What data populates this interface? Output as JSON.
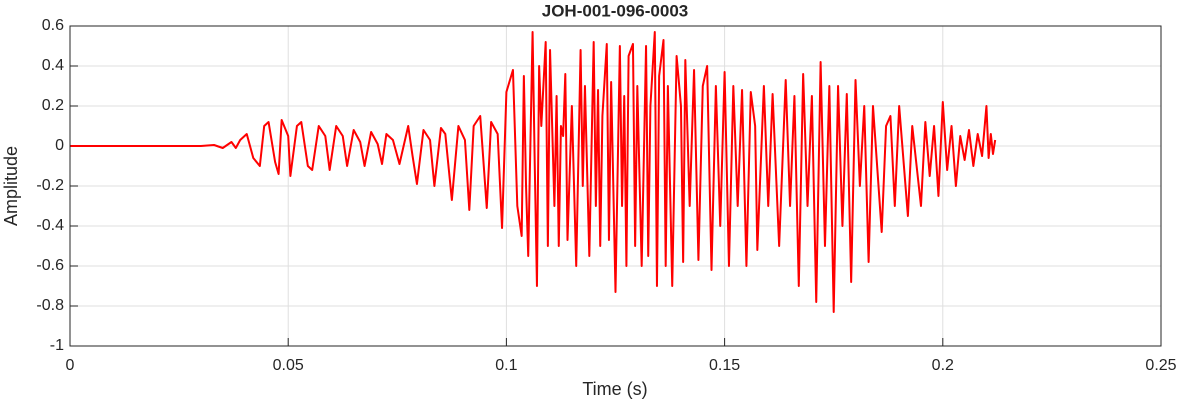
{
  "chart_data": {
    "type": "line",
    "title": "JOH-001-096-0003",
    "x_label": "Time (s)",
    "y_label": "Amplitude",
    "xlim": [
      0,
      0.25
    ],
    "xticks": [
      0,
      0.05,
      0.1,
      0.15,
      0.2,
      0.25
    ],
    "ylim": [
      -1,
      0.6
    ],
    "yticks": [
      -1,
      -0.8,
      -0.6,
      -0.4,
      -0.2,
      0,
      0.2,
      0.4,
      0.6
    ],
    "grid": true,
    "series": [
      {
        "color": "#ff0000",
        "x": [
          0,
          0.03,
          0.033,
          0.035,
          0.037,
          0.038,
          0.039,
          0.0405,
          0.042,
          0.0435,
          0.0445,
          0.0455,
          0.047,
          0.0478,
          0.0485,
          0.05,
          0.0505,
          0.052,
          0.053,
          0.0545,
          0.0555,
          0.057,
          0.0585,
          0.0595,
          0.061,
          0.0625,
          0.0635,
          0.065,
          0.0665,
          0.0675,
          0.069,
          0.0705,
          0.0715,
          0.0725,
          0.074,
          0.0755,
          0.0775,
          0.0785,
          0.0795,
          0.081,
          0.0825,
          0.0835,
          0.085,
          0.086,
          0.0875,
          0.089,
          0.0905,
          0.0915,
          0.0925,
          0.094,
          0.0955,
          0.0965,
          0.098,
          0.099,
          0.1,
          0.1015,
          0.1025,
          0.1035,
          0.104,
          0.1045,
          0.105,
          0.106,
          0.1065,
          0.107,
          0.1075,
          0.108,
          0.109,
          0.1095,
          0.11,
          0.111,
          0.1115,
          0.112,
          0.1125,
          0.113,
          0.1135,
          0.114,
          0.115,
          0.116,
          0.117,
          0.1175,
          0.118,
          0.119,
          0.12,
          0.1205,
          0.121,
          0.1215,
          0.122,
          0.123,
          0.1235,
          0.124,
          0.125,
          0.126,
          0.1265,
          0.127,
          0.1275,
          0.128,
          0.129,
          0.1295,
          0.13,
          0.131,
          0.132,
          0.1325,
          0.133,
          0.134,
          0.1345,
          0.135,
          0.136,
          0.1365,
          0.137,
          0.138,
          0.139,
          0.14,
          0.1405,
          0.141,
          0.142,
          0.143,
          0.144,
          0.145,
          0.146,
          0.147,
          0.148,
          0.149,
          0.15,
          0.151,
          0.152,
          0.153,
          0.154,
          0.155,
          0.156,
          0.157,
          0.1575,
          0.159,
          0.16,
          0.161,
          0.1625,
          0.164,
          0.165,
          0.166,
          0.167,
          0.168,
          0.169,
          0.17,
          0.171,
          0.172,
          0.173,
          0.174,
          0.175,
          0.176,
          0.177,
          0.178,
          0.179,
          0.18,
          0.181,
          0.182,
          0.183,
          0.184,
          0.186,
          0.187,
          0.188,
          0.189,
          0.19,
          0.192,
          0.193,
          0.195,
          0.196,
          0.197,
          0.198,
          0.199,
          0.2,
          0.201,
          0.202,
          0.203,
          0.204,
          0.205,
          0.206,
          0.207,
          0.208,
          0.209,
          0.21,
          0.2105,
          0.211,
          0.2115,
          0.212
        ],
        "values": [
          0,
          0,
          0.005,
          -0.01,
          0.02,
          -0.01,
          0.03,
          0.06,
          -0.06,
          -0.1,
          0.1,
          0.12,
          -0.08,
          -0.14,
          0.13,
          0.05,
          -0.15,
          0.1,
          0.12,
          -0.1,
          -0.12,
          0.1,
          0.05,
          -0.12,
          0.1,
          0.05,
          -0.1,
          0.08,
          0.02,
          -0.1,
          0.07,
          0.01,
          -0.09,
          0.06,
          0.03,
          -0.09,
          0.1,
          -0.05,
          -0.19,
          0.08,
          0.03,
          -0.2,
          0.09,
          0.06,
          -0.27,
          0.1,
          0.03,
          -0.32,
          0.1,
          0.15,
          -0.31,
          0.12,
          0.06,
          -0.41,
          0.27,
          0.38,
          -0.3,
          -0.45,
          0.35,
          -0.2,
          -0.55,
          0.57,
          -0.1,
          -0.7,
          0.4,
          0.1,
          0.52,
          -0.5,
          0.48,
          -0.3,
          0.25,
          -0.5,
          0.1,
          0.05,
          0.36,
          -0.47,
          0.2,
          -0.6,
          0.48,
          -0.2,
          0.3,
          -0.55,
          0.52,
          -0.3,
          0.28,
          -0.5,
          0.15,
          0.51,
          -0.47,
          0.32,
          -0.73,
          0.5,
          -0.3,
          0.25,
          -0.6,
          0.45,
          0.51,
          -0.5,
          0.3,
          -0.6,
          0.5,
          -0.55,
          0.2,
          0.57,
          -0.7,
          0.35,
          0.53,
          -0.6,
          0.3,
          -0.7,
          0.45,
          0.2,
          -0.58,
          0.43,
          -0.3,
          0.38,
          -0.57,
          0.3,
          0.4,
          -0.62,
          0.3,
          -0.4,
          0.37,
          -0.6,
          0.3,
          -0.3,
          0.28,
          -0.6,
          0.27,
          0.1,
          -0.52,
          0.3,
          -0.3,
          0.26,
          -0.5,
          0.33,
          -0.3,
          0.25,
          -0.7,
          0.36,
          -0.3,
          0.25,
          -0.78,
          0.42,
          -0.5,
          0.3,
          -0.83,
          0.3,
          -0.4,
          0.26,
          -0.68,
          0.33,
          -0.2,
          0.2,
          -0.58,
          0.2,
          -0.43,
          0.1,
          0.15,
          -0.3,
          0.2,
          -0.35,
          0.1,
          -0.3,
          0.12,
          -0.15,
          0.1,
          -0.25,
          0.22,
          -0.12,
          0.1,
          -0.2,
          0.05,
          -0.07,
          0.08,
          -0.1,
          0.06,
          -0.05,
          0.2,
          -0.06,
          0.06,
          -0.04,
          0.03
        ]
      }
    ]
  }
}
